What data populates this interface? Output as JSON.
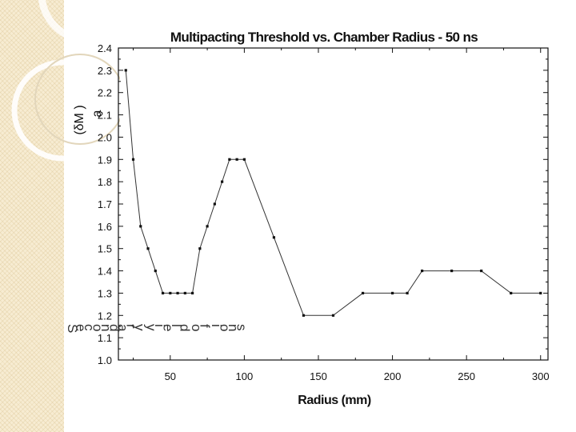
{
  "chart_data": {
    "type": "line",
    "title": "Multipacting Threshold vs. Chamber Radius - 50 ns",
    "xlabel": "Radius (mm)",
    "ylabel": "(δM )",
    "ylabel_sub": "a",
    "overlay_text": "Secondary yield of ions",
    "xlim": [
      15,
      305
    ],
    "ylim": [
      1.0,
      2.4
    ],
    "xticks": [
      50,
      100,
      150,
      200,
      250,
      300
    ],
    "yticks": [
      1.0,
      1.1,
      1.2,
      1.3,
      1.4,
      1.5,
      1.6,
      1.7,
      1.8,
      1.9,
      2.0,
      2.1,
      2.2,
      2.3,
      2.4
    ],
    "grid": false,
    "series": [
      {
        "x": [
          20,
          25,
          30,
          35,
          40,
          45,
          50,
          55,
          60,
          65,
          70,
          75,
          80,
          85,
          90,
          95,
          100,
          120,
          140,
          160,
          180,
          200,
          210,
          220,
          240,
          260,
          280,
          300
        ],
        "y": [
          2.3,
          1.9,
          1.6,
          1.5,
          1.4,
          1.3,
          1.3,
          1.3,
          1.3,
          1.3,
          1.5,
          1.6,
          1.7,
          1.8,
          1.9,
          1.9,
          1.9,
          1.55,
          1.2,
          1.2,
          1.3,
          1.3,
          1.3,
          1.4,
          1.4,
          1.4,
          1.3,
          1.3
        ]
      }
    ],
    "colors": {
      "line": "#333333",
      "marker": "#111111",
      "axis": "#111111"
    }
  }
}
